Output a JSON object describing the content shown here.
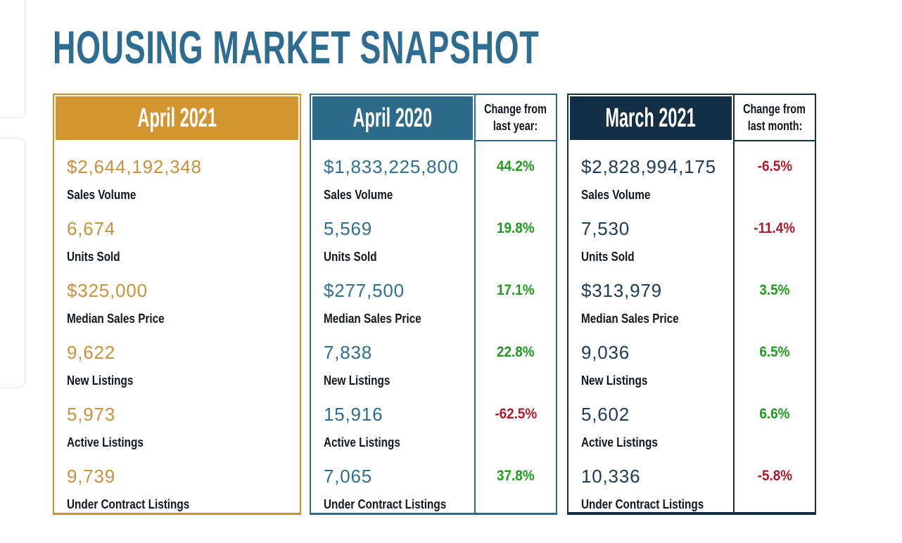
{
  "title": "HOUSING MARKET SNAPSHOT",
  "colors": {
    "title_teal": "#2f6d90",
    "gold": "#d2952f",
    "gold_value": "#c6923c",
    "teal": "#2e6b8a",
    "teal_value": "#2f6e8e",
    "navy": "#132f45",
    "navy_value": "#1d3b51",
    "positive_green": "#1f9b1f",
    "negative_red": "#ae1c2b",
    "label_dark": "#10181f"
  },
  "panels": [
    {
      "id": "april-2021",
      "header": "April 2021",
      "theme": "gold",
      "rows": [
        {
          "value": "$2,644,192,348",
          "label": "Sales Volume"
        },
        {
          "value": "6,674",
          "label": "Units Sold"
        },
        {
          "value": "$325,000",
          "label": "Median Sales Price"
        },
        {
          "value": "9,622",
          "label": "New Listings"
        },
        {
          "value": "5,973",
          "label": "Active Listings"
        },
        {
          "value": "9,739",
          "label": "Under Contract Listings"
        }
      ]
    },
    {
      "id": "april-2020",
      "header": "April 2020",
      "theme": "teal",
      "change_header": "Change from last year:",
      "change_header_lines": [
        "Change from",
        "last year:"
      ],
      "rows": [
        {
          "value": "$1,833,225,800",
          "label": "Sales Volume",
          "change": "44.2%",
          "direction": "up"
        },
        {
          "value": "5,569",
          "label": "Units Sold",
          "change": "19.8%",
          "direction": "up"
        },
        {
          "value": "$277,500",
          "label": "Median Sales Price",
          "change": "17.1%",
          "direction": "up"
        },
        {
          "value": "7,838",
          "label": "New Listings",
          "change": "22.8%",
          "direction": "up"
        },
        {
          "value": "15,916",
          "label": "Active Listings",
          "change": "-62.5%",
          "direction": "down"
        },
        {
          "value": "7,065",
          "label": "Under Contract Listings",
          "change": "37.8%",
          "direction": "up"
        }
      ]
    },
    {
      "id": "march-2021",
      "header": "March 2021",
      "theme": "navy",
      "change_header": "Change from last month:",
      "change_header_lines": [
        "Change from",
        "last month:"
      ],
      "rows": [
        {
          "value": "$2,828,994,175",
          "label": "Sales Volume",
          "change": "-6.5%",
          "direction": "down"
        },
        {
          "value": "7,530",
          "label": "Units Sold",
          "change": "-11.4%",
          "direction": "down"
        },
        {
          "value": "$313,979",
          "label": "Median Sales Price",
          "change": "3.5%",
          "direction": "up"
        },
        {
          "value": "9,036",
          "label": "New Listings",
          "change": "6.5%",
          "direction": "up"
        },
        {
          "value": "5,602",
          "label": "Active Listings",
          "change": "6.6%",
          "direction": "up"
        },
        {
          "value": "10,336",
          "label": "Under Contract Listings",
          "change": "-5.8%",
          "direction": "down"
        }
      ]
    }
  ]
}
